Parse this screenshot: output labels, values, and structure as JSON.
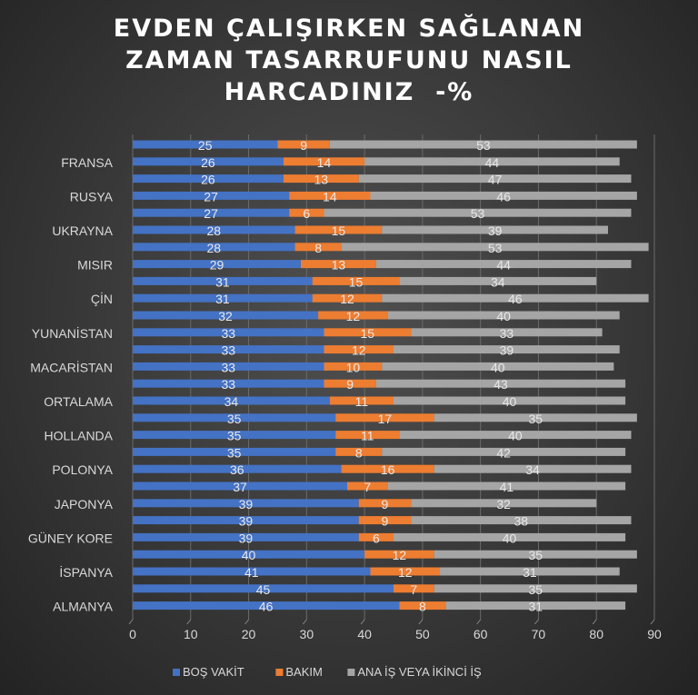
{
  "chart_data": {
    "type": "bar",
    "orientation": "horizontal",
    "stacked": true,
    "title_lines": [
      "EVDEN ÇALIŞIRKEN SAĞLANAN",
      "ZAMAN TASARRUFUNU NASIL",
      "HARCADINIZ  -%"
    ],
    "categories": [
      "",
      "FRANSA",
      "",
      "RUSYA",
      "",
      "UKRAYNA",
      "",
      "MISIR",
      "",
      "ÇİN",
      "",
      "YUNANİSTAN",
      "",
      "MACARİSTAN",
      "",
      "ORTALAMA",
      "",
      "HOLLANDA",
      "",
      "POLONYA",
      "",
      "JAPONYA",
      "",
      "GÜNEY KORE",
      "",
      "İSPANYA",
      "",
      "ALMANYA"
    ],
    "series": [
      {
        "name": "BOŞ VAKİT",
        "color": "#4472c4",
        "values": [
          25,
          26,
          26,
          27,
          27,
          28,
          28,
          29,
          31,
          31,
          32,
          33,
          33,
          33,
          33,
          34,
          35,
          35,
          35,
          36,
          37,
          39,
          39,
          39,
          40,
          41,
          45,
          46
        ]
      },
      {
        "name": "BAKIM",
        "color": "#ed7d31",
        "values": [
          9,
          14,
          13,
          14,
          6,
          15,
          8,
          13,
          15,
          12,
          12,
          15,
          12,
          10,
          9,
          11,
          17,
          11,
          8,
          16,
          7,
          9,
          9,
          6,
          12,
          12,
          7,
          8
        ]
      },
      {
        "name": "ANA İŞ VEYA İKİNCİ İŞ",
        "color": "#a5a5a5",
        "values": [
          53,
          44,
          47,
          46,
          53,
          39,
          53,
          44,
          34,
          46,
          40,
          33,
          39,
          40,
          43,
          40,
          35,
          40,
          42,
          34,
          41,
          32,
          38,
          40,
          35,
          31,
          35,
          31
        ]
      }
    ],
    "xlim": [
      0,
      90
    ],
    "xticks": [
      "0",
      "10",
      "20",
      "30",
      "40",
      "50",
      "60",
      "70",
      "80",
      "90"
    ],
    "grid": true,
    "legend": "bottom"
  }
}
